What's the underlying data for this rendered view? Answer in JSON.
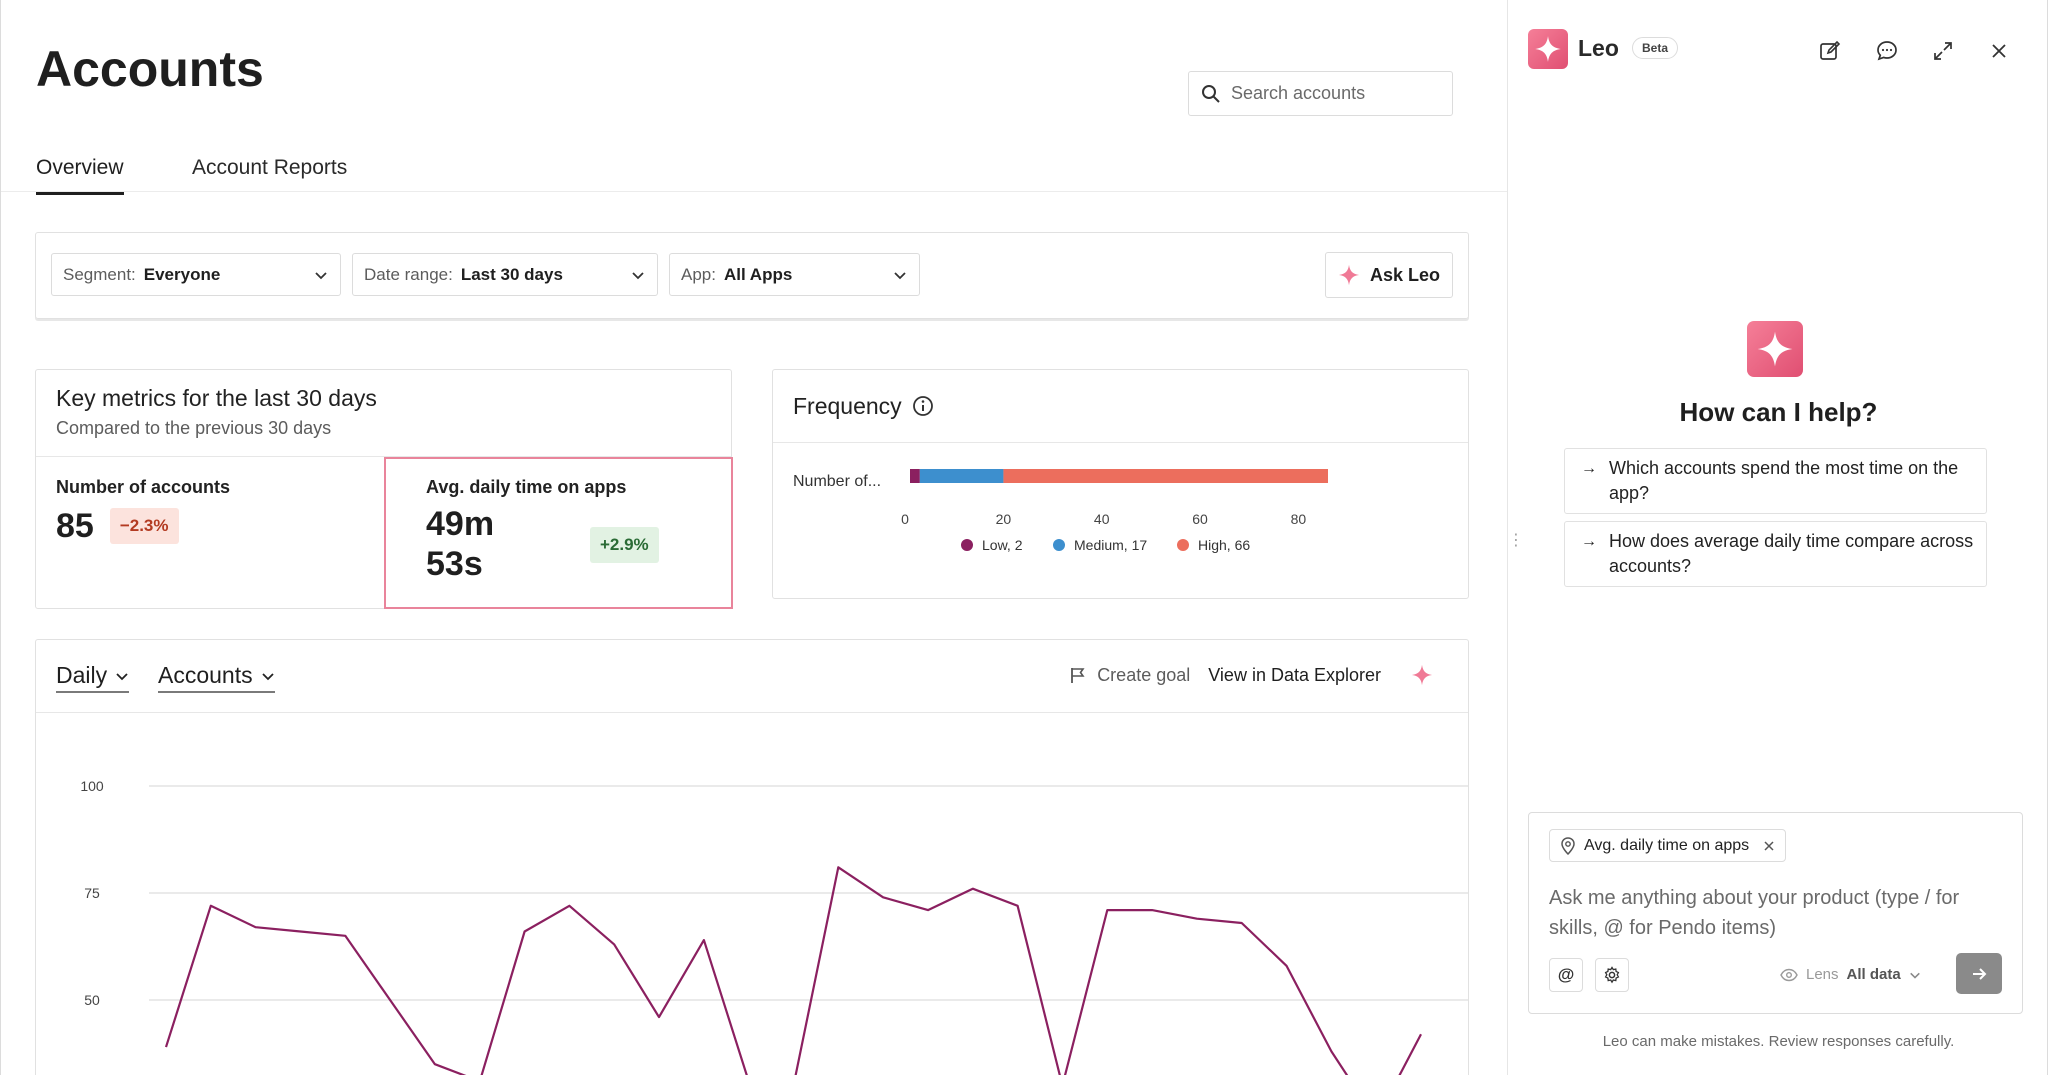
{
  "page": {
    "title": "Accounts",
    "search_placeholder": "Search accounts"
  },
  "tabs": [
    {
      "label": "Overview",
      "active": true
    },
    {
      "label": "Account Reports",
      "active": false
    }
  ],
  "filters": {
    "segment": {
      "label": "Segment:",
      "value": "Everyone"
    },
    "date_range": {
      "label": "Date range:",
      "value": "Last 30 days"
    },
    "app": {
      "label": "App:",
      "value": "All Apps"
    },
    "ask_button": "Ask Leo"
  },
  "metrics": {
    "title": "Key metrics for the last 30 days",
    "subtitle": "Compared to the previous 30 days",
    "accounts": {
      "label": "Number of accounts",
      "value": "85",
      "change": "−2.3%"
    },
    "time": {
      "label": "Avg. daily time on apps",
      "value_line1": "49m",
      "value_line2": "53s",
      "change": "+2.9%"
    }
  },
  "frequency": {
    "title": "Frequency",
    "chart_data": {
      "type": "bar",
      "orientation": "horizontal-stacked",
      "categories": [
        "Number of..."
      ],
      "series": [
        {
          "name": "Low",
          "values": [
            2
          ],
          "color": "#8b2060"
        },
        {
          "name": "Medium",
          "values": [
            17
          ],
          "color": "#3d8fce"
        },
        {
          "name": "High",
          "values": [
            66
          ],
          "color": "#ec6e5d"
        }
      ],
      "xlim": [
        0,
        85
      ],
      "xticks": [
        0,
        20,
        40,
        60,
        80
      ],
      "legend": [
        "Low, 2",
        "Medium, 17",
        "High, 66"
      ],
      "legend_position": "bottom"
    }
  },
  "trend": {
    "interval": "Daily",
    "entity": "Accounts",
    "create_goal": "Create goal",
    "view_explorer": "View in Data Explorer",
    "chart_data": {
      "type": "line",
      "color": "#8b2060",
      "yticks": [
        100,
        75,
        50
      ],
      "ylim": [
        35,
        103
      ],
      "x": [
        0,
        1,
        2,
        3,
        4,
        5,
        6,
        7,
        8,
        9,
        10,
        11,
        12,
        13,
        14,
        15,
        16,
        17,
        18,
        19,
        20,
        21,
        22,
        23,
        24,
        25,
        26,
        27,
        28
      ],
      "y": [
        39,
        72,
        67,
        66,
        65,
        50,
        35,
        31,
        66,
        72,
        63,
        46,
        64,
        31,
        30,
        81,
        74,
        71,
        76,
        72,
        30,
        71,
        71,
        69,
        68,
        58,
        38,
        22,
        42
      ]
    }
  },
  "leo": {
    "name": "Leo",
    "beta": "Beta",
    "help_title": "How can I help?",
    "suggestions": [
      "Which accounts spend the most time on the app?",
      "How does average daily time compare across accounts?"
    ],
    "context_chip": "Avg. daily time on apps",
    "input_placeholder": "Ask me anything about your product (type / for skills, @ for Pendo items)",
    "lens_label": "Lens",
    "lens_value": "All data",
    "disclaimer": "Leo can make mistakes. Review responses carefully."
  },
  "colors": {
    "accent": "#e9567a",
    "selected_border": "#e9849b"
  }
}
